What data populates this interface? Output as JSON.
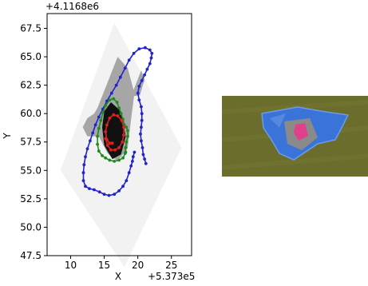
{
  "chart_data": {
    "type": "scatter",
    "title": "",
    "xlabel": "X",
    "ylabel": "Y",
    "x_offset_label": "+5.373e5",
    "y_offset_label": "+4.1168e6",
    "xlim": [
      6.5,
      28
    ],
    "ylim": [
      47.5,
      68.8
    ],
    "x_ticks": [
      {
        "value": 10,
        "label": "10"
      },
      {
        "value": 15,
        "label": "15"
      },
      {
        "value": 20,
        "label": "20"
      },
      {
        "value": 25,
        "label": "25"
      }
    ],
    "y_ticks": [
      {
        "value": 47.5,
        "label": "47.5"
      },
      {
        "value": 50.0,
        "label": "50.0"
      },
      {
        "value": 52.5,
        "label": "52.5"
      },
      {
        "value": 55.0,
        "label": "55.0"
      },
      {
        "value": 57.5,
        "label": "57.5"
      },
      {
        "value": 60.0,
        "label": "60.0"
      },
      {
        "value": 62.5,
        "label": "62.5"
      },
      {
        "value": 65.0,
        "label": "65.0"
      },
      {
        "value": 67.5,
        "label": "67.5"
      }
    ],
    "footprint_outline": [
      [
        8.5,
        55.0
      ],
      [
        16.5,
        68.0
      ],
      [
        26.5,
        57.0
      ],
      [
        18.0,
        46.5
      ]
    ],
    "gray_region": [
      [
        14.0,
        60.5
      ],
      [
        17.0,
        65.0
      ],
      [
        18.5,
        64.0
      ],
      [
        19.5,
        61.8
      ],
      [
        19.0,
        59.5
      ],
      [
        18.5,
        57.0
      ],
      [
        17.0,
        55.8
      ],
      [
        15.5,
        56.5
      ],
      [
        14.2,
        58.0
      ],
      [
        12.5,
        58.0
      ],
      [
        11.8,
        58.8
      ],
      [
        12.5,
        59.6
      ],
      [
        13.5,
        60.0
      ]
    ],
    "gray_region_2": [
      [
        19.0,
        61.5
      ],
      [
        20.5,
        63.8
      ],
      [
        21.0,
        63.0
      ],
      [
        20.3,
        61.6
      ]
    ],
    "black_region": [
      [
        15.0,
        60.2
      ],
      [
        16.0,
        61.0
      ],
      [
        17.5,
        60.2
      ],
      [
        18.2,
        58.0
      ],
      [
        17.5,
        56.4
      ],
      [
        16.2,
        56.0
      ],
      [
        15.0,
        57.2
      ],
      [
        14.7,
        58.8
      ]
    ],
    "series": [
      {
        "color": "#2222cc",
        "style": "dots",
        "points": [
          [
            21.2,
            55.6
          ],
          [
            21.0,
            56.0
          ],
          [
            20.8,
            56.4
          ],
          [
            20.7,
            57.0
          ],
          [
            20.5,
            57.6
          ],
          [
            20.4,
            58.2
          ],
          [
            20.5,
            58.8
          ],
          [
            20.6,
            59.4
          ],
          [
            20.6,
            60.0
          ],
          [
            20.5,
            60.6
          ],
          [
            20.2,
            61.2
          ],
          [
            20.0,
            61.8
          ],
          [
            20.2,
            62.4
          ],
          [
            20.6,
            62.9
          ],
          [
            21.0,
            63.4
          ],
          [
            21.4,
            63.9
          ],
          [
            21.8,
            64.4
          ],
          [
            22.0,
            64.9
          ],
          [
            22.1,
            65.3
          ],
          [
            21.8,
            65.6
          ],
          [
            21.1,
            65.8
          ],
          [
            20.2,
            65.7
          ],
          [
            19.4,
            65.3
          ],
          [
            18.7,
            64.7
          ],
          [
            18.1,
            64.0
          ],
          [
            17.4,
            63.2
          ],
          [
            16.8,
            62.5
          ],
          [
            16.1,
            61.8
          ],
          [
            15.4,
            61.1
          ],
          [
            14.8,
            60.4
          ],
          [
            14.2,
            59.7
          ],
          [
            13.7,
            59.0
          ],
          [
            13.3,
            58.3
          ],
          [
            12.9,
            57.6
          ],
          [
            12.5,
            56.9
          ],
          [
            12.2,
            56.2
          ],
          [
            12.0,
            55.5
          ],
          [
            11.9,
            54.8
          ],
          [
            11.9,
            54.1
          ],
          [
            12.2,
            53.6
          ],
          [
            12.8,
            53.4
          ],
          [
            13.5,
            53.3
          ],
          [
            14.3,
            53.1
          ],
          [
            15.0,
            52.9
          ],
          [
            15.7,
            52.8
          ],
          [
            16.5,
            52.9
          ],
          [
            17.2,
            53.2
          ],
          [
            17.8,
            53.6
          ],
          [
            18.3,
            54.1
          ],
          [
            18.7,
            54.8
          ],
          [
            19.0,
            55.4
          ],
          [
            19.2,
            55.8
          ],
          [
            19.3,
            56.2
          ],
          [
            19.5,
            56.6
          ]
        ]
      },
      {
        "color": "#1f8a1f",
        "style": "dots",
        "points": [
          [
            18.3,
            57.5
          ],
          [
            18.2,
            57.0
          ],
          [
            18.1,
            56.5
          ],
          [
            17.8,
            56.1
          ],
          [
            17.2,
            55.9
          ],
          [
            16.5,
            55.8
          ],
          [
            15.8,
            55.9
          ],
          [
            15.2,
            56.1
          ],
          [
            14.7,
            56.3
          ],
          [
            14.2,
            56.7
          ],
          [
            14.0,
            57.3
          ],
          [
            14.0,
            58.0
          ],
          [
            14.2,
            58.7
          ],
          [
            14.5,
            59.4
          ],
          [
            14.8,
            60.1
          ],
          [
            15.2,
            60.7
          ],
          [
            15.8,
            61.2
          ],
          [
            16.4,
            61.3
          ],
          [
            16.9,
            61.0
          ],
          [
            17.2,
            60.5
          ],
          [
            17.5,
            60.0
          ],
          [
            17.8,
            59.5
          ],
          [
            18.0,
            59.0
          ],
          [
            18.3,
            58.8
          ],
          [
            18.5,
            58.5
          ],
          [
            18.5,
            58.0
          ],
          [
            18.3,
            57.5
          ],
          [
            18.2,
            57.0
          ],
          [
            18.2,
            56.6
          ]
        ]
      },
      {
        "color": "#dd2222",
        "style": "dots",
        "points": [
          [
            15.2,
            57.8
          ],
          [
            15.5,
            57.2
          ],
          [
            16.0,
            56.8
          ],
          [
            16.6,
            56.8
          ],
          [
            17.2,
            57.0
          ],
          [
            17.7,
            57.5
          ],
          [
            17.9,
            58.1
          ],
          [
            17.9,
            58.8
          ],
          [
            17.6,
            59.4
          ],
          [
            17.0,
            59.8
          ],
          [
            16.4,
            59.9
          ],
          [
            15.8,
            59.6
          ],
          [
            15.4,
            59.0
          ],
          [
            15.2,
            58.4
          ],
          [
            15.4,
            57.7
          ],
          [
            15.8,
            57.4
          ],
          [
            16.2,
            57.4
          ]
        ]
      }
    ]
  },
  "photo": {
    "grass_color": "#6b6d2c",
    "tarp_color": "#3b74d8",
    "inner_color": "#8a8a8a",
    "highlight_color": "#e0408a"
  }
}
